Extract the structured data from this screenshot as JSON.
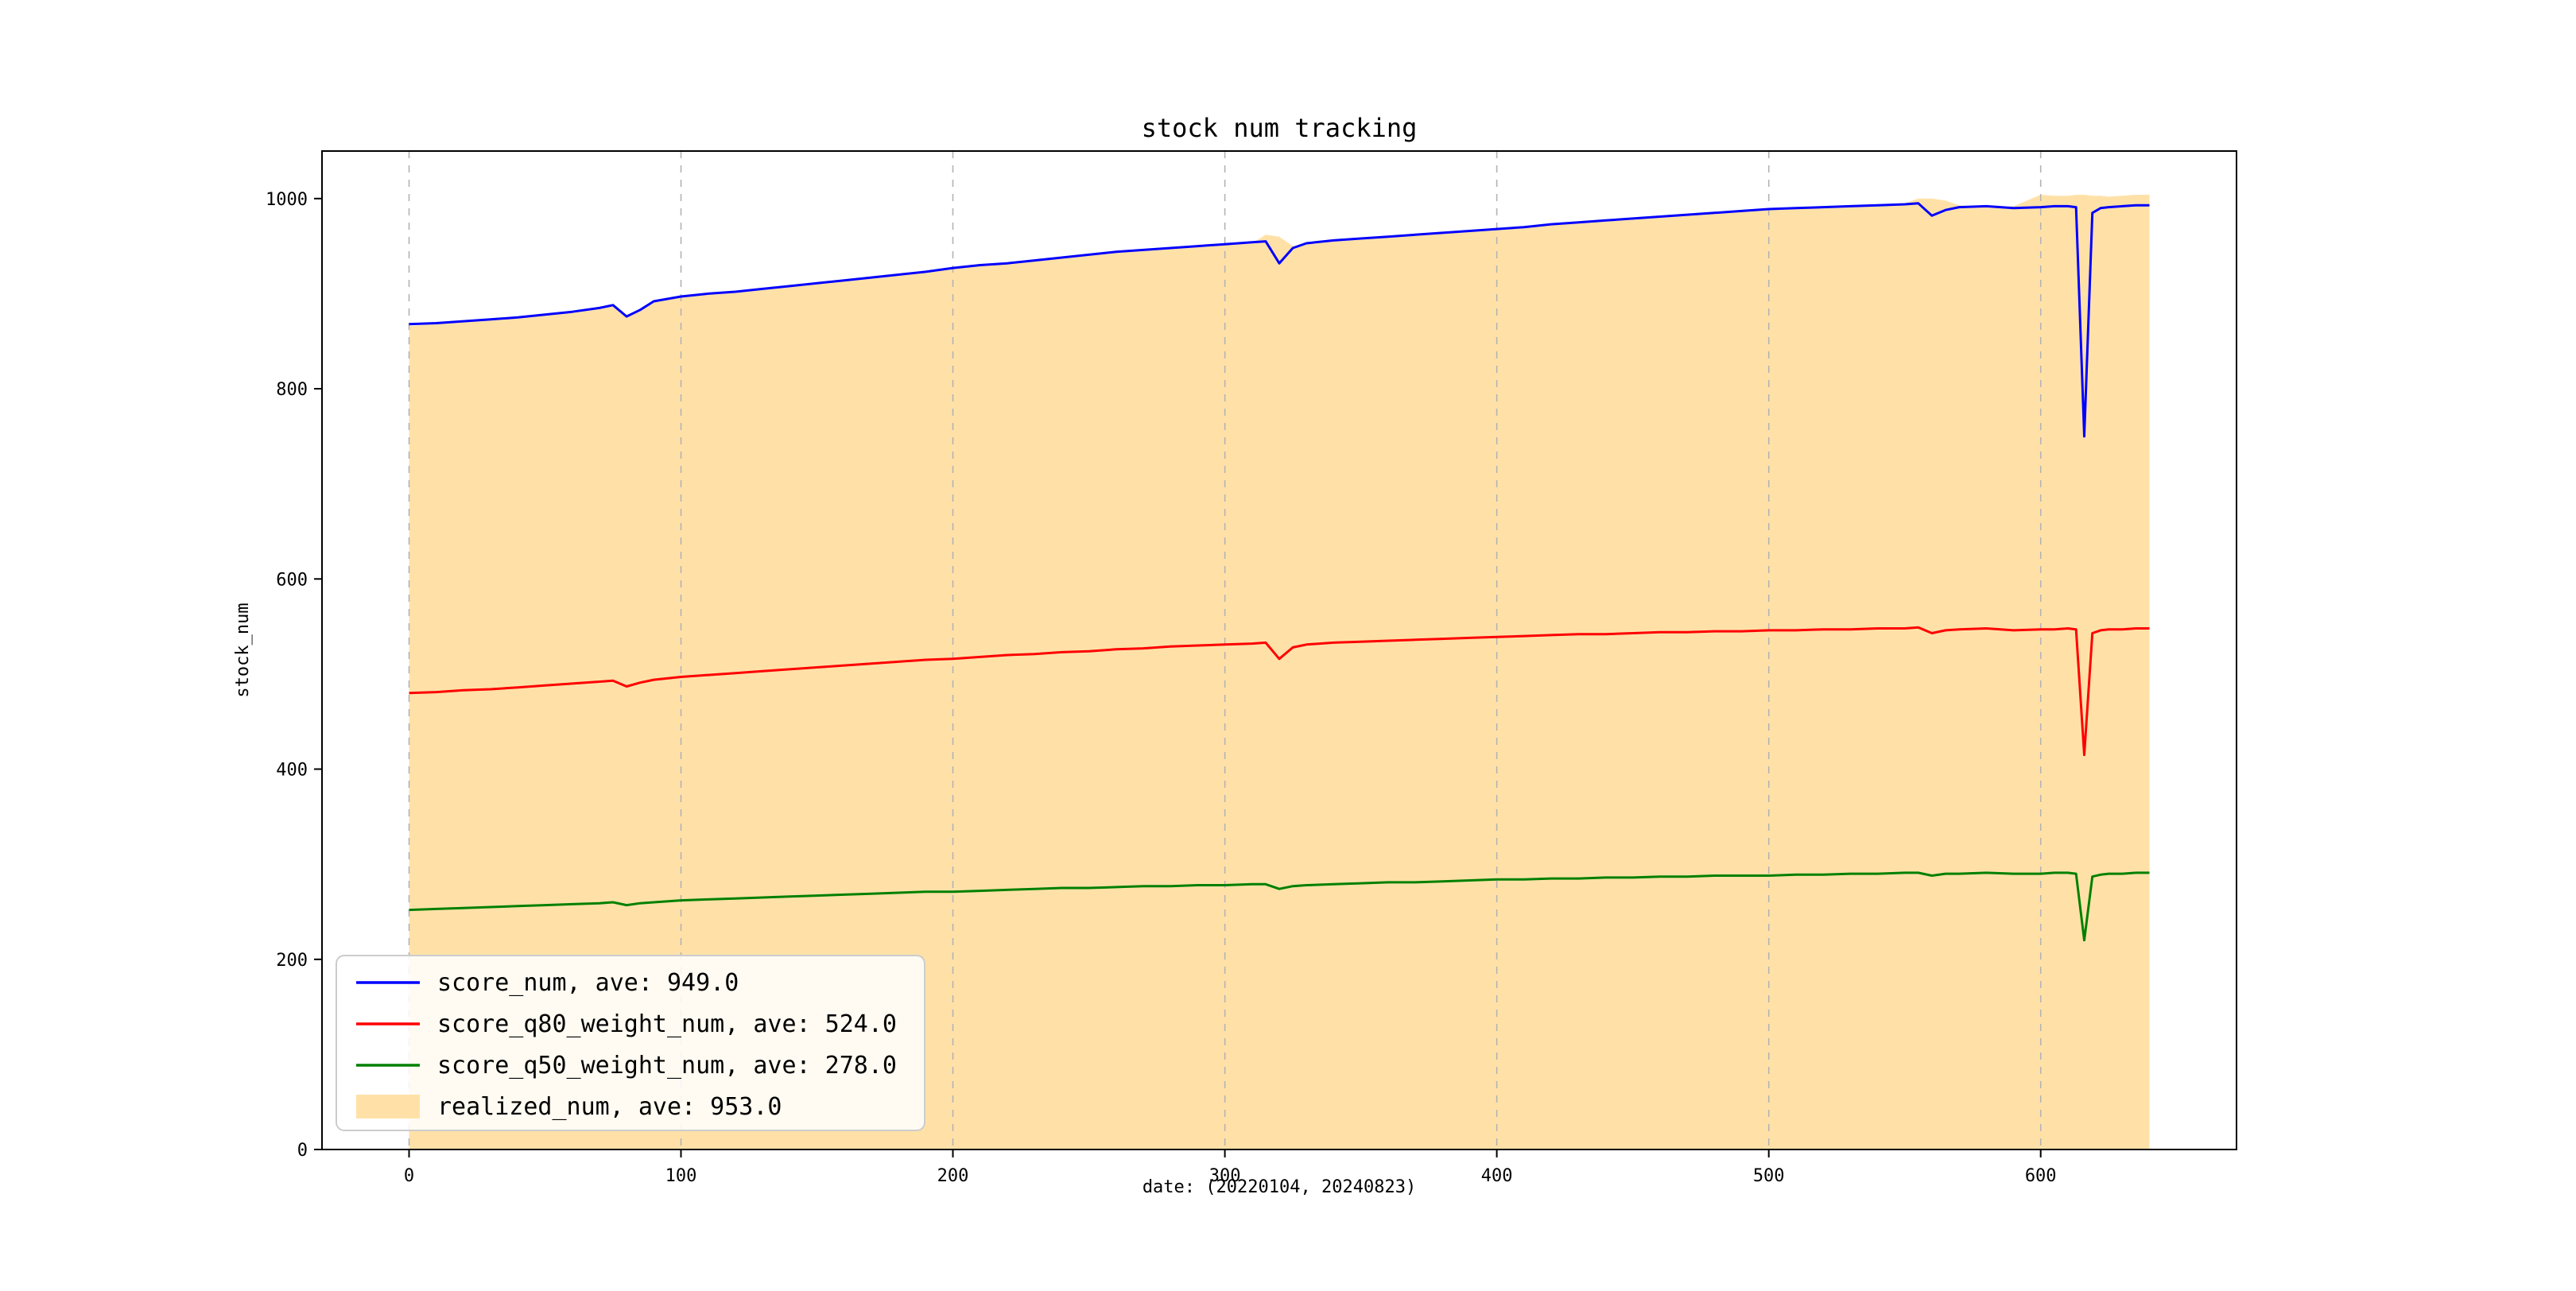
{
  "chart_data": {
    "type": "line",
    "title": "stock num tracking",
    "xlabel": "date: (20220104, 20240823)",
    "ylabel": "stock_num",
    "xlim": [
      -32,
      672
    ],
    "ylim": [
      0,
      1050
    ],
    "xticks": [
      0,
      100,
      200,
      300,
      400,
      500,
      600
    ],
    "yticks": [
      0,
      200,
      400,
      600,
      800,
      1000
    ],
    "grid": {
      "vertical_dashed": true,
      "color": "#b3b3b3"
    },
    "legend_position": "lower left",
    "x": [
      0,
      10,
      20,
      30,
      40,
      50,
      60,
      70,
      75,
      80,
      85,
      90,
      100,
      110,
      120,
      130,
      140,
      150,
      160,
      170,
      180,
      190,
      200,
      210,
      220,
      230,
      240,
      250,
      260,
      270,
      280,
      290,
      300,
      310,
      315,
      320,
      325,
      330,
      340,
      350,
      360,
      370,
      380,
      390,
      400,
      410,
      420,
      430,
      440,
      450,
      460,
      470,
      480,
      490,
      500,
      510,
      520,
      530,
      540,
      550,
      555,
      560,
      565,
      570,
      580,
      590,
      600,
      605,
      610,
      613,
      616,
      619,
      622,
      625,
      630,
      635,
      640
    ],
    "area_series": {
      "name": "realized_num, ave: 953.0",
      "color": "#ffe1a8",
      "values": [
        866,
        868,
        870,
        872,
        874,
        877,
        880,
        884,
        887,
        877,
        882,
        891,
        896,
        899,
        901,
        904,
        907,
        910,
        913,
        916,
        919,
        922,
        926,
        929,
        931,
        934,
        937,
        940,
        943,
        945,
        947,
        949,
        951,
        953,
        962,
        960,
        950,
        952,
        955,
        957,
        959,
        961,
        963,
        965,
        967,
        969,
        972,
        974,
        976,
        978,
        980,
        982,
        984,
        986,
        988,
        989,
        990,
        991,
        992,
        995,
        1000,
        1000,
        998,
        993,
        991,
        992,
        1004,
        1003,
        1003,
        1004,
        1004,
        1003,
        1003,
        1002,
        1003,
        1004,
        1004
      ]
    },
    "series": [
      {
        "name": "score_num, ave: 949.0",
        "color": "#0000ff",
        "values": [
          868,
          869,
          871,
          873,
          875,
          878,
          881,
          885,
          888,
          876,
          883,
          892,
          897,
          900,
          902,
          905,
          908,
          911,
          914,
          917,
          920,
          923,
          927,
          930,
          932,
          935,
          938,
          941,
          944,
          946,
          948,
          950,
          952,
          954,
          955,
          932,
          948,
          953,
          956,
          958,
          960,
          962,
          964,
          966,
          968,
          970,
          973,
          975,
          977,
          979,
          981,
          983,
          985,
          987,
          989,
          990,
          991,
          992,
          993,
          994,
          995,
          982,
          988,
          991,
          992,
          990,
          991,
          992,
          992,
          991,
          750,
          985,
          990,
          991,
          992,
          993,
          993
        ]
      },
      {
        "name": "score_q80_weight_num, ave: 524.0",
        "color": "#ff0000",
        "values": [
          480,
          481,
          483,
          484,
          486,
          488,
          490,
          492,
          493,
          487,
          491,
          494,
          497,
          499,
          501,
          503,
          505,
          507,
          509,
          511,
          513,
          515,
          516,
          518,
          520,
          521,
          523,
          524,
          526,
          527,
          529,
          530,
          531,
          532,
          533,
          516,
          528,
          531,
          533,
          534,
          535,
          536,
          537,
          538,
          539,
          540,
          541,
          542,
          542,
          543,
          544,
          544,
          545,
          545,
          546,
          546,
          547,
          547,
          548,
          548,
          549,
          543,
          546,
          547,
          548,
          546,
          547,
          547,
          548,
          547,
          415,
          543,
          546,
          547,
          547,
          548,
          548
        ]
      },
      {
        "name": "score_q50_weight_num, ave: 278.0",
        "color": "#008000",
        "values": [
          252,
          253,
          254,
          255,
          256,
          257,
          258,
          259,
          260,
          257,
          259,
          260,
          262,
          263,
          264,
          265,
          266,
          267,
          268,
          269,
          270,
          271,
          271,
          272,
          273,
          274,
          275,
          275,
          276,
          277,
          277,
          278,
          278,
          279,
          279,
          274,
          277,
          278,
          279,
          280,
          281,
          281,
          282,
          283,
          284,
          284,
          285,
          285,
          286,
          286,
          287,
          287,
          288,
          288,
          288,
          289,
          289,
          290,
          290,
          291,
          291,
          288,
          290,
          290,
          291,
          290,
          290,
          291,
          291,
          290,
          220,
          287,
          289,
          290,
          290,
          291,
          291
        ]
      }
    ]
  }
}
